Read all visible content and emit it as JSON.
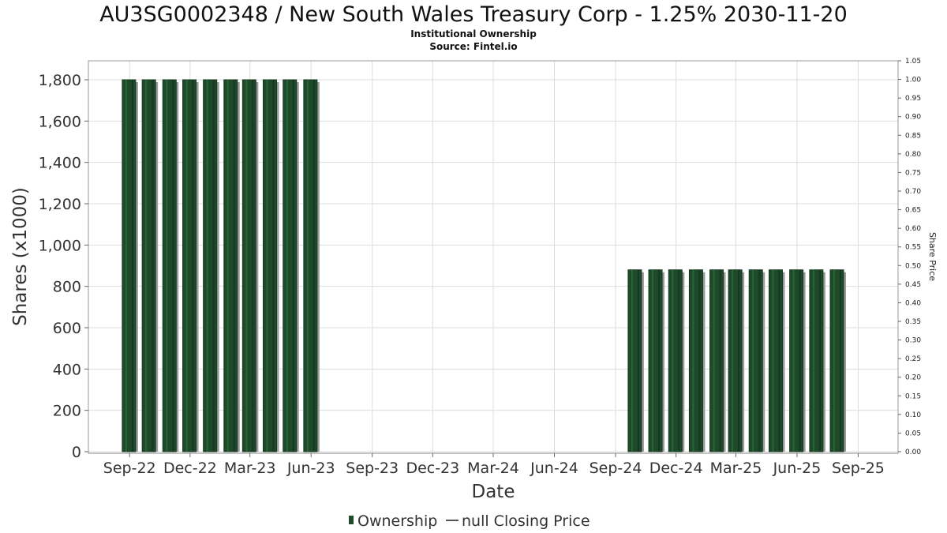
{
  "chart_data": {
    "type": "bar",
    "title": "AU3SG0002348 / New South Wales Treasury Corp - 1.25% 2030-11-20",
    "subtitle_lines": [
      "Institutional Ownership",
      "Source: Fintel.io"
    ],
    "xlabel": "Date",
    "ylabel": "Shares (x1000)",
    "y2label": "Share Price",
    "ylim": [
      0,
      1900
    ],
    "y2lim": [
      0,
      1.05
    ],
    "xlim": [
      "2022-07-01",
      "2025-10-31"
    ],
    "yticks": [
      {
        "v": 0,
        "label": "0"
      },
      {
        "v": 200,
        "label": "200"
      },
      {
        "v": 400,
        "label": "400"
      },
      {
        "v": 600,
        "label": "600"
      },
      {
        "v": 800,
        "label": "800"
      },
      {
        "v": 1000,
        "label": "1,000"
      },
      {
        "v": 1200,
        "label": "1,200"
      },
      {
        "v": 1400,
        "label": "1,400"
      },
      {
        "v": 1600,
        "label": "1,600"
      },
      {
        "v": 1800,
        "label": "1,800"
      }
    ],
    "y2ticks": [
      "0.00",
      "0.05",
      "0.10",
      "0.15",
      "0.20",
      "0.25",
      "0.30",
      "0.35",
      "0.40",
      "0.45",
      "0.50",
      "0.55",
      "0.60",
      "0.65",
      "0.70",
      "0.75",
      "0.80",
      "0.85",
      "0.90",
      "0.95",
      "1.00",
      "1.05"
    ],
    "xticks": [
      {
        "date": "2022-09-01",
        "label": "Sep-22"
      },
      {
        "date": "2022-12-01",
        "label": "Dec-22"
      },
      {
        "date": "2023-03-01",
        "label": "Mar-23"
      },
      {
        "date": "2023-06-01",
        "label": "Jun-23"
      },
      {
        "date": "2023-09-01",
        "label": "Sep-23"
      },
      {
        "date": "2023-12-01",
        "label": "Dec-23"
      },
      {
        "date": "2024-03-01",
        "label": "Mar-24"
      },
      {
        "date": "2024-06-01",
        "label": "Jun-24"
      },
      {
        "date": "2024-09-01",
        "label": "Sep-24"
      },
      {
        "date": "2024-12-01",
        "label": "Dec-24"
      },
      {
        "date": "2025-03-01",
        "label": "Mar-25"
      },
      {
        "date": "2025-06-01",
        "label": "Jun-25"
      },
      {
        "date": "2025-09-01",
        "label": "Sep-25"
      }
    ],
    "series": [
      {
        "name": "Ownership",
        "color": "#1e4a2a",
        "points": [
          {
            "x": "2022-08-31",
            "y": 1800
          },
          {
            "x": "2022-09-30",
            "y": 1800
          },
          {
            "x": "2022-10-31",
            "y": 1800
          },
          {
            "x": "2022-11-30",
            "y": 1800
          },
          {
            "x": "2022-12-31",
            "y": 1800
          },
          {
            "x": "2023-01-31",
            "y": 1800
          },
          {
            "x": "2023-02-28",
            "y": 1800
          },
          {
            "x": "2023-03-31",
            "y": 1800
          },
          {
            "x": "2023-04-30",
            "y": 1800
          },
          {
            "x": "2023-05-31",
            "y": 1800
          },
          {
            "x": "2024-09-30",
            "y": 880
          },
          {
            "x": "2024-10-31",
            "y": 880
          },
          {
            "x": "2024-11-30",
            "y": 880
          },
          {
            "x": "2024-12-31",
            "y": 880
          },
          {
            "x": "2025-01-31",
            "y": 880
          },
          {
            "x": "2025-02-28",
            "y": 880
          },
          {
            "x": "2025-03-31",
            "y": 880
          },
          {
            "x": "2025-04-30",
            "y": 880
          },
          {
            "x": "2025-05-31",
            "y": 880
          },
          {
            "x": "2025-06-30",
            "y": 880
          },
          {
            "x": "2025-07-31",
            "y": 880
          }
        ]
      },
      {
        "name": "null Closing Price",
        "color": "#555555",
        "points": []
      }
    ],
    "grid": true,
    "legend_placement": "bottom-center",
    "colors": {
      "bar": "#1e4a2a",
      "bar_shadow": "#9a9a9a",
      "grid": "#dddddd",
      "plot_border": "#999999"
    }
  }
}
